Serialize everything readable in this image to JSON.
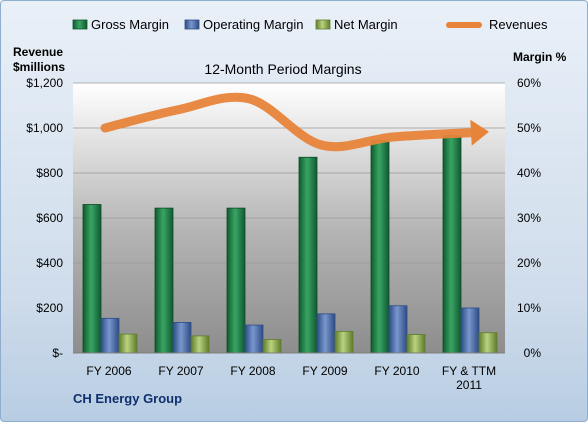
{
  "chart_data": {
    "type": "bar",
    "title": "12-Month Period Margins",
    "left_axis_title": [
      "Revenue",
      "$millions"
    ],
    "right_axis_title": "Margin %",
    "categories": [
      [
        "FY 2006"
      ],
      [
        "FY 2007"
      ],
      [
        "FY 2008"
      ],
      [
        "FY 2009"
      ],
      [
        "FY 2010"
      ],
      [
        "FY & TTM",
        "2011"
      ]
    ],
    "left_ticks": [
      "$-",
      "$200",
      "$400",
      "$600",
      "$800",
      "$1,000",
      "$1,200"
    ],
    "right_ticks": [
      "0%",
      "10%",
      "20%",
      "30%",
      "40%",
      "50%",
      "60%"
    ],
    "ylim_left": [
      0,
      1200
    ],
    "ylim_right": [
      0,
      60
    ],
    "series": [
      {
        "name": "Gross Margin",
        "axis": "right",
        "color": "#1e7a45",
        "values": [
          33,
          32.2,
          32.2,
          43.5,
          47.2,
          48.3
        ]
      },
      {
        "name": "Operating Margin",
        "axis": "right",
        "color": "#4f6fae",
        "values": [
          7.7,
          6.8,
          6.2,
          8.7,
          10.5,
          10.0
        ]
      },
      {
        "name": "Net Margin",
        "axis": "right",
        "color": "#93b35a",
        "values": [
          4.2,
          3.8,
          3.0,
          4.8,
          4.1,
          4.5
        ]
      },
      {
        "name": "Revenues",
        "axis": "left",
        "color": "#e8843a",
        "values": [
          1000,
          1080,
          1130,
          925,
          960,
          980
        ]
      }
    ],
    "company": "CH Energy Group"
  }
}
